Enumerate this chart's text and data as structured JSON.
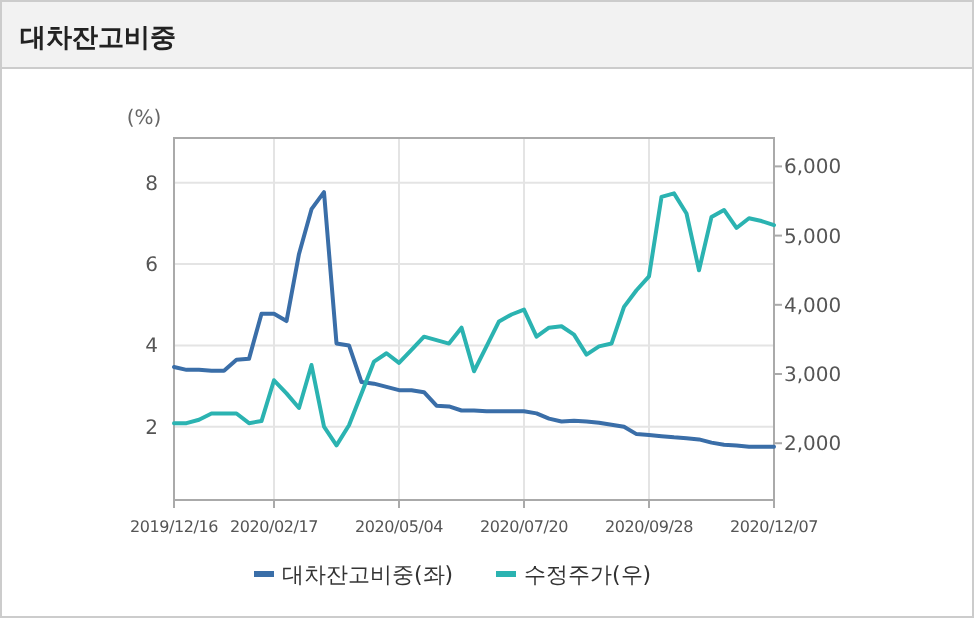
{
  "chart_data": {
    "type": "line",
    "title": "대차잔고비중",
    "ylabel": "(%)",
    "categories": [
      "2019/12/16",
      null,
      null,
      null,
      null,
      null,
      null,
      null,
      "2020/02/17",
      null,
      null,
      null,
      null,
      null,
      null,
      null,
      null,
      null,
      "2020/05/04",
      null,
      null,
      null,
      null,
      null,
      null,
      null,
      null,
      null,
      "2020/07/20",
      null,
      null,
      null,
      null,
      null,
      null,
      null,
      null,
      null,
      "2020/09/28",
      null,
      null,
      null,
      null,
      null,
      null,
      null,
      null,
      null,
      "2020/12/07"
    ],
    "series": [
      {
        "name": "대차잔고비중(좌)",
        "color": "#3a6ea8",
        "values": [
          3.47,
          3.4,
          3.4,
          3.38,
          3.38,
          3.65,
          3.67,
          4.78,
          4.78,
          4.6,
          6.25,
          7.35,
          7.77,
          4.05,
          4.0,
          3.1,
          3.06,
          2.98,
          2.9,
          2.9,
          2.85,
          2.52,
          2.5,
          2.4,
          2.4,
          2.38,
          2.38,
          2.38,
          2.38,
          2.33,
          2.2,
          2.13,
          2.15,
          2.13,
          2.1,
          2.05,
          2.0,
          1.82,
          1.8,
          1.77,
          1.74,
          1.72,
          1.69,
          1.61,
          1.56,
          1.54,
          1.51,
          1.51,
          1.51
        ]
      },
      {
        "name": "수정주가(우)",
        "color": "#2bb3b1",
        "axis": "y2",
        "values": [
          2290,
          2290,
          2340,
          2430,
          2430,
          2430,
          2290,
          2320,
          2910,
          2720,
          2510,
          3130,
          2240,
          1970,
          2260,
          2720,
          3180,
          3300,
          3160,
          3350,
          3540,
          3490,
          3440,
          3670,
          3040,
          3400,
          3760,
          3860,
          3930,
          3540,
          3670,
          3690,
          3570,
          3280,
          3400,
          3440,
          3970,
          4210,
          4410,
          5560,
          5610,
          5320,
          4500,
          5270,
          5370,
          5110,
          5250,
          5210,
          5150
        ]
      }
    ],
    "ylim": [
      0.2,
      9.1
    ],
    "yticks": [
      2,
      4,
      6,
      8
    ],
    "y2lim": [
      1180,
      6410
    ],
    "y2ticks": [
      {
        "value": 2000,
        "label": "2,000"
      },
      {
        "value": 3000,
        "label": "3,000"
      },
      {
        "value": 4000,
        "label": "4,000"
      },
      {
        "value": 5000,
        "label": "5,000"
      },
      {
        "value": 6000,
        "label": "6,000"
      }
    ],
    "grid": true,
    "legend": "bottom"
  }
}
